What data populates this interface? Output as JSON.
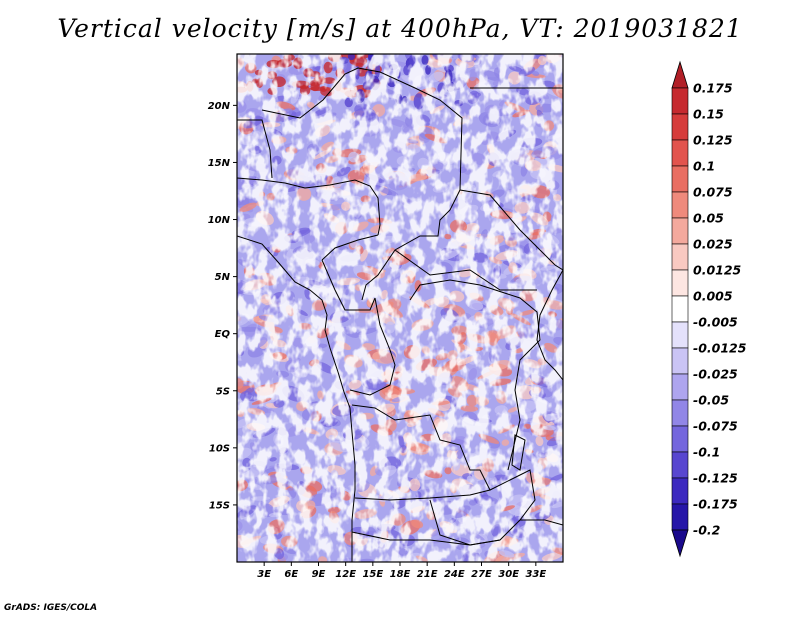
{
  "title": "Vertical velocity [m/s] at 400hPa, VT: 2019031821",
  "credit": "GrADS: IGES/COLA",
  "map": {
    "lon_range": [
      0,
      36
    ],
    "lat_range": [
      -20,
      24.5
    ],
    "lat_ticks": [
      {
        "value": 20,
        "label": "20N"
      },
      {
        "value": 15,
        "label": "15N"
      },
      {
        "value": 10,
        "label": "10N"
      },
      {
        "value": 5,
        "label": "5N"
      },
      {
        "value": 0,
        "label": "EQ"
      },
      {
        "value": -5,
        "label": "5S"
      },
      {
        "value": -10,
        "label": "10S"
      },
      {
        "value": -15,
        "label": "15S"
      }
    ],
    "lon_ticks": [
      {
        "value": 3,
        "label": "3E"
      },
      {
        "value": 6,
        "label": "6E"
      },
      {
        "value": 9,
        "label": "9E"
      },
      {
        "value": 12,
        "label": "12E"
      },
      {
        "value": 15,
        "label": "15E"
      },
      {
        "value": 18,
        "label": "18E"
      },
      {
        "value": 21,
        "label": "21E"
      },
      {
        "value": 24,
        "label": "24E"
      },
      {
        "value": 27,
        "label": "27E"
      },
      {
        "value": 30,
        "label": "30E"
      },
      {
        "value": 33,
        "label": "33E"
      }
    ]
  },
  "colorbar": {
    "labels": [
      "0.175",
      "0.15",
      "0.125",
      "0.1",
      "0.075",
      "0.05",
      "0.025",
      "0.0125",
      "0.005",
      "-0.005",
      "-0.0125",
      "-0.025",
      "-0.05",
      "-0.075",
      "-0.1",
      "-0.125",
      "-0.175",
      "-0.2"
    ],
    "colors": [
      "#b11f27",
      "#c62a2f",
      "#d63c3b",
      "#e2544e",
      "#e96e62",
      "#ef8a7c",
      "#f4a99d",
      "#f9c9c1",
      "#fde6e2",
      "#ffffff",
      "#e4e1fb",
      "#cac4f5",
      "#aea5ef",
      "#9186e7",
      "#7466dd",
      "#5846d0",
      "#3c29bf",
      "#2616a8",
      "#1a0a8c"
    ]
  }
}
